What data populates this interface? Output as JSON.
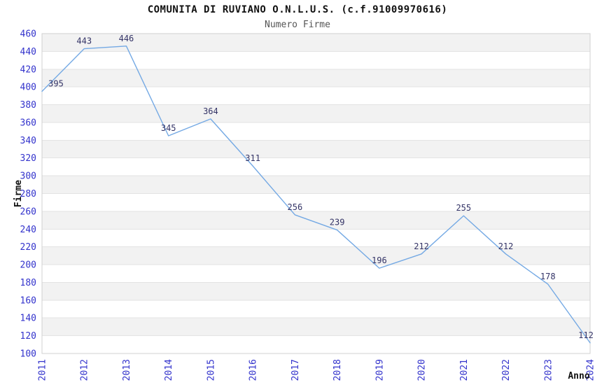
{
  "chart_data": {
    "type": "line",
    "title": "COMUNITA DI RUVIANO O.N.L.U.S. (c.f.91009970616)",
    "subtitle": "Numero Firme",
    "xlabel": "Anno",
    "ylabel": "Firme",
    "categories": [
      "2011",
      "2012",
      "2013",
      "2014",
      "2015",
      "2016",
      "2017",
      "2018",
      "2019",
      "2020",
      "2021",
      "2022",
      "2023",
      "2024"
    ],
    "series": [
      {
        "name": "Numero Firme",
        "values": [
          395,
          443,
          446,
          345,
          364,
          311,
          256,
          239,
          196,
          212,
          255,
          212,
          178,
          112
        ]
      }
    ],
    "ylim": [
      100,
      460
    ],
    "ytick_step": 20,
    "grid": "horizontal-gridlines-with-alternating-bands",
    "legend": "none",
    "point_labels_visible": true,
    "x_tick_rotation_deg": -90,
    "colors": {
      "line": "#74a9e4",
      "axis_tick_labels": "#3333cc",
      "point_labels": "#333366",
      "band_gray": "#f2f2f2",
      "gridline": "#e3e3e3",
      "plot_border": "#d0d0d0",
      "title": "#111111",
      "subtitle": "#555555",
      "axis_titles": "#111111",
      "background": "#ffffff"
    }
  }
}
